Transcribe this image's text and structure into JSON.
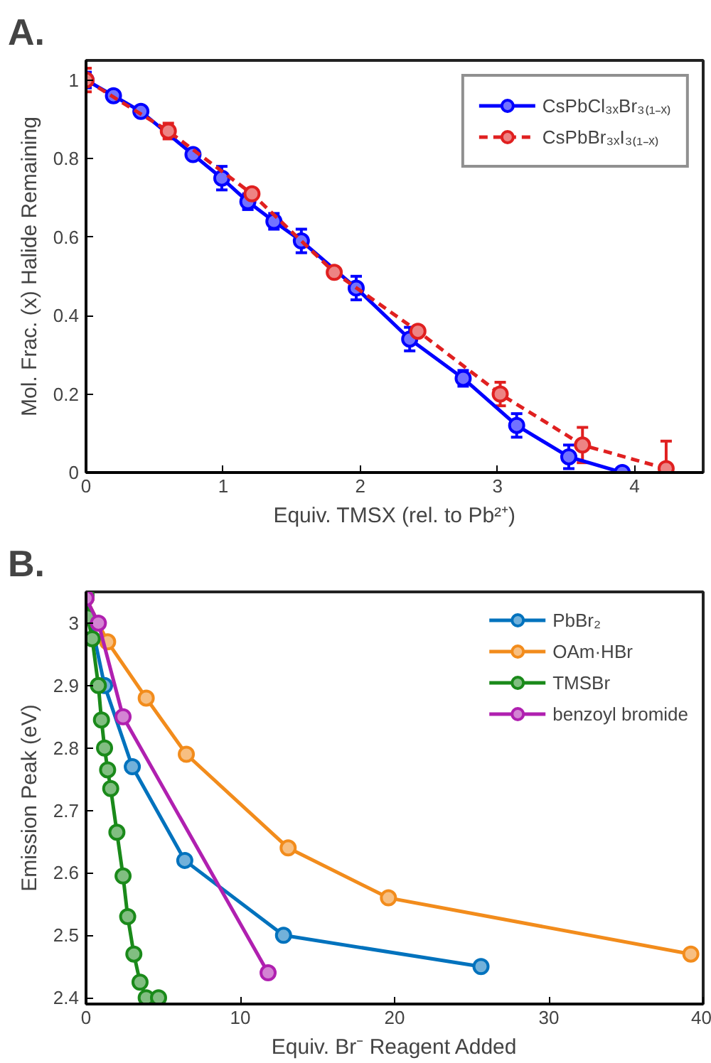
{
  "chart_data": [
    {
      "type": "line",
      "xlabel": "Equiv. TMSX (rel. to Pb²⁺)",
      "ylabel": "Mol. Frac. (x) Halide Remaining",
      "annotations": [
        "A."
      ],
      "xlim": [
        0,
        4.5
      ],
      "ylim": [
        0,
        1.05
      ],
      "xticks": [
        0,
        1,
        2,
        3,
        4
      ],
      "yticks": [
        0,
        0.2,
        0.4,
        0.6,
        0.8,
        1
      ],
      "grid": false,
      "legend": "top right",
      "marker": "circle",
      "series": [
        {
          "name": "CsPbCl₃ₓBr₃₍₁₋ₓ₎",
          "color": "#0000ff",
          "line_style": "solid",
          "x": [
            0,
            0.2,
            0.4,
            0.78,
            0.99,
            1.18,
            1.37,
            1.57,
            1.97,
            2.36,
            2.75,
            3.14,
            3.52,
            3.91
          ],
          "values": [
            1.0,
            0.96,
            0.92,
            0.81,
            0.75,
            0.69,
            0.64,
            0.59,
            0.47,
            0.34,
            0.24,
            0.12,
            0.04,
            0.0
          ],
          "errors": [
            0.02,
            0.01,
            0.01,
            0.01,
            0.03,
            0.02,
            0.02,
            0.03,
            0.03,
            0.03,
            0.02,
            0.03,
            0.03,
            0.01
          ]
        },
        {
          "name": "CsPbBr₃ₓI₃₍₁₋ₓ₎",
          "color": "#e02020",
          "line_style": "dashed",
          "x": [
            0,
            0.6,
            1.21,
            1.81,
            2.42,
            3.02,
            3.62,
            4.23
          ],
          "values": [
            1.0,
            0.87,
            0.71,
            0.51,
            0.36,
            0.2,
            0.07,
            0.01
          ],
          "errors": [
            0.03,
            0.02,
            0.01,
            0.01,
            0.01,
            0.03,
            0.045,
            0.07
          ]
        }
      ]
    },
    {
      "type": "line",
      "xlabel": "Equiv. Br⁻ Reagent Added",
      "ylabel": "Emission Peak (eV)",
      "annotations": [
        "B."
      ],
      "xlim": [
        0,
        40
      ],
      "ylim": [
        2.39,
        3.05
      ],
      "xticks": [
        0,
        10,
        20,
        30,
        40
      ],
      "yticks": [
        2.4,
        2.5,
        2.6,
        2.7,
        2.8,
        2.9,
        3
      ],
      "grid": false,
      "legend": "top right",
      "marker": "circle",
      "series": [
        {
          "name": "PbBr₂",
          "color": "#0072bd",
          "x": [
            0,
            1.2,
            3.0,
            6.4,
            12.8,
            25.6
          ],
          "values": [
            3.04,
            2.9,
            2.77,
            2.62,
            2.5,
            2.45
          ]
        },
        {
          "name": "OAm·HBr",
          "color": "#f28c1c",
          "x": [
            0,
            1.4,
            3.9,
            6.5,
            13.1,
            19.6,
            39.2
          ],
          "values": [
            3.04,
            2.97,
            2.88,
            2.79,
            2.64,
            2.56,
            2.47
          ]
        },
        {
          "name": "TMSBr",
          "color": "#1a8a1a",
          "x": [
            0,
            0.1,
            0.4,
            0.8,
            1.0,
            1.2,
            1.4,
            1.6,
            2.0,
            2.4,
            2.7,
            3.1,
            3.5,
            3.9,
            4.7
          ],
          "values": [
            3.045,
            3.01,
            2.975,
            2.9,
            2.845,
            2.8,
            2.765,
            2.735,
            2.665,
            2.595,
            2.53,
            2.47,
            2.425,
            2.4,
            2.4
          ]
        },
        {
          "name": "benzoyl bromide",
          "color": "#b020b0",
          "x": [
            0,
            0.8,
            2.4,
            11.8
          ],
          "values": [
            3.04,
            3.0,
            2.85,
            2.44
          ]
        }
      ]
    }
  ]
}
